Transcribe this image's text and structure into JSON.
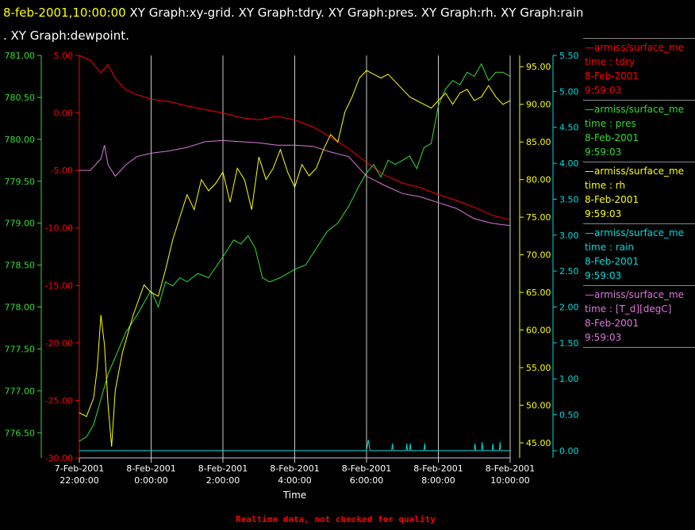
{
  "title": {
    "timestamp": "8-feb-2001,10:00:00",
    "graphs_line1": "  XY Graph:xy-grid.  XY Graph:tdry.  XY Graph:pres.  XY Graph:rh.  XY Graph:rain",
    "graphs_line2": ".  XY Graph:dewpoint."
  },
  "colors": {
    "tdry": "#ff0000",
    "pres": "#33dd33",
    "rh": "#ffff00",
    "rain": "#00dddd",
    "dewpoint": "#dd77dd",
    "grid": "#cccccc",
    "background": "#000000"
  },
  "legend": [
    {
      "source": "—armiss/surface_me",
      "field": "time : tdry",
      "date": "8-Feb-2001",
      "time": "9:59:03",
      "color": "#ff0000"
    },
    {
      "source": "—armiss/surface_me",
      "field": "time : pres",
      "date": "8-Feb-2001",
      "time": "9:59:03",
      "color": "#33dd33"
    },
    {
      "source": "—armiss/surface_me",
      "field": "time : rh",
      "date": "8-Feb-2001",
      "time": "9:59:03",
      "color": "#ffff00"
    },
    {
      "source": "—armiss/surface_me",
      "field": "time : rain",
      "date": "8-Feb-2001",
      "time": "9:59:03",
      "color": "#00dddd"
    },
    {
      "source": "—armiss/surface_me",
      "field": "time : [T_d][degC]",
      "date": "8-Feb-2001",
      "time": "9:59:03",
      "color": "#dd77dd"
    }
  ],
  "footer_note": "Realtime data, not checked for quality",
  "chart_data": {
    "type": "line",
    "xlabel": "Time",
    "x_ticks": [
      {
        "hour": 22,
        "date": "7-Feb-2001",
        "time": "22:00:00"
      },
      {
        "hour": 24,
        "date": "8-Feb-2001",
        "time": "0:00:00"
      },
      {
        "hour": 26,
        "date": "8-Feb-2001",
        "time": "2:00:00"
      },
      {
        "hour": 28,
        "date": "8-Feb-2001",
        "time": "4:00:00"
      },
      {
        "hour": 30,
        "date": "8-Feb-2001",
        "time": "6:00:00"
      },
      {
        "hour": 32,
        "date": "8-Feb-2001",
        "time": "8:00:00"
      },
      {
        "hour": 34,
        "date": "8-Feb-2001",
        "time": "10:00:00"
      }
    ],
    "xlim_hours": [
      22,
      34
    ],
    "axes": {
      "pres": {
        "ylim": [
          776.2,
          781.0
        ],
        "ticks": [
          "781.00",
          "780.50",
          "780.00",
          "779.50",
          "779.00",
          "778.50",
          "778.00",
          "777.50",
          "777.00",
          "776.50"
        ],
        "side": "left"
      },
      "tdry": {
        "ylim": [
          -30,
          5
        ],
        "ticks": [
          "5.00",
          "0.00",
          "-5.00",
          "-10.00",
          "-15.00",
          "-20.00",
          "-25.00",
          "-30.00"
        ],
        "side": "left"
      },
      "rh": {
        "ylim": [
          43,
          96.5
        ],
        "ticks": [
          "95.00",
          "90.00",
          "85.00",
          "80.00",
          "75.00",
          "70.00",
          "65.00",
          "60.00",
          "55.00",
          "50.00",
          "45.00"
        ],
        "side": "right"
      },
      "rain": {
        "ylim": [
          -0.1,
          5.5
        ],
        "ticks": [
          "5.50",
          "5.00",
          "4.50",
          "4.00",
          "3.50",
          "3.00",
          "2.50",
          "2.00",
          "1.50",
          "1.00",
          "0.50",
          "0.00"
        ],
        "side": "right"
      }
    },
    "series": [
      {
        "key": "tdry",
        "axis": "tdry",
        "color": "#ff0000",
        "x": [
          22.0,
          22.3,
          22.6,
          22.8,
          23.0,
          23.3,
          23.6,
          24.0,
          24.5,
          25.0,
          25.5,
          26.0,
          26.5,
          27.0,
          27.5,
          28.0,
          28.5,
          29.0,
          29.5,
          30.0,
          30.5,
          31.0,
          31.5,
          32.0,
          32.5,
          33.0,
          33.5,
          34.0
        ],
        "y": [
          5.0,
          4.6,
          3.5,
          4.2,
          3.0,
          2.0,
          1.6,
          1.2,
          1.0,
          0.6,
          0.3,
          0.0,
          -0.4,
          -0.6,
          -0.3,
          -0.6,
          -1.2,
          -2.1,
          -3.1,
          -4.3,
          -5.4,
          -6.1,
          -6.5,
          -7.1,
          -7.6,
          -8.2,
          -8.9,
          -9.3
        ]
      },
      {
        "key": "pres",
        "axis": "pres",
        "color": "#33dd33",
        "x": [
          22.0,
          22.2,
          22.4,
          22.6,
          22.8,
          23.0,
          23.3,
          23.6,
          24.0,
          24.2,
          24.4,
          24.6,
          24.8,
          25.0,
          25.3,
          25.6,
          26.0,
          26.3,
          26.5,
          26.7,
          26.9,
          27.1,
          27.3,
          27.6,
          28.0,
          28.3,
          28.6,
          28.9,
          29.2,
          29.5,
          29.8,
          30.0,
          30.2,
          30.4,
          30.6,
          30.8,
          31.0,
          31.2,
          31.4,
          31.6,
          31.8,
          32.0,
          32.2,
          32.4,
          32.6,
          32.8,
          33.0,
          33.2,
          33.4,
          33.6,
          33.8,
          34.0
        ],
        "y": [
          776.4,
          776.45,
          776.6,
          776.9,
          777.2,
          777.4,
          777.7,
          777.9,
          778.2,
          778.0,
          778.3,
          778.25,
          778.35,
          778.3,
          778.4,
          778.35,
          778.6,
          778.8,
          778.75,
          778.85,
          778.7,
          778.35,
          778.3,
          778.35,
          778.45,
          778.5,
          778.7,
          778.9,
          779.0,
          779.2,
          779.45,
          779.6,
          779.7,
          779.55,
          779.75,
          779.7,
          779.75,
          779.8,
          779.65,
          779.9,
          779.95,
          780.4,
          780.6,
          780.7,
          780.65,
          780.8,
          780.75,
          780.9,
          780.7,
          780.8,
          780.8,
          780.75
        ]
      },
      {
        "key": "rh",
        "axis": "rh",
        "color": "#ffff00",
        "x": [
          22.0,
          22.2,
          22.4,
          22.5,
          22.6,
          22.7,
          22.8,
          22.9,
          23.0,
          23.2,
          23.5,
          23.8,
          24.0,
          24.2,
          24.4,
          24.6,
          24.8,
          25.0,
          25.2,
          25.4,
          25.6,
          25.8,
          26.0,
          26.2,
          26.4,
          26.6,
          26.8,
          27.0,
          27.2,
          27.4,
          27.6,
          27.8,
          28.0,
          28.2,
          28.4,
          28.6,
          28.8,
          29.0,
          29.2,
          29.4,
          29.6,
          29.8,
          30.0,
          30.2,
          30.4,
          30.6,
          30.8,
          31.0,
          31.2,
          31.4,
          31.6,
          31.8,
          32.0,
          32.2,
          32.4,
          32.6,
          32.8,
          33.0,
          33.2,
          33.4,
          33.6,
          33.8,
          34.0
        ],
        "y": [
          49.0,
          48.5,
          51.0,
          55.0,
          62.0,
          58.0,
          50.0,
          44.5,
          52.0,
          57.0,
          62.0,
          66.0,
          65.0,
          64.5,
          68.0,
          72.0,
          75.0,
          78.0,
          76.0,
          80.0,
          78.5,
          79.5,
          81.0,
          77.0,
          81.5,
          80.0,
          76.0,
          83.0,
          80.0,
          81.5,
          84.0,
          81.0,
          79.0,
          82.0,
          80.5,
          81.5,
          84.0,
          86.0,
          85.0,
          89.0,
          91.0,
          93.5,
          94.5,
          94.0,
          93.5,
          94.0,
          93.0,
          92.0,
          91.0,
          90.5,
          90.0,
          89.5,
          90.5,
          91.5,
          90.0,
          91.5,
          92.0,
          90.5,
          91.0,
          92.5,
          91.0,
          90.0,
          90.5
        ]
      },
      {
        "key": "rain",
        "axis": "rain",
        "color": "#00dddd",
        "x": [
          22.0,
          30.0,
          30.05,
          30.1,
          30.7,
          30.72,
          30.74,
          31.1,
          31.12,
          31.14,
          31.2,
          31.22,
          31.24,
          31.6,
          31.62,
          31.64,
          33.0,
          33.02,
          33.04,
          33.2,
          33.22,
          33.24,
          33.5,
          33.52,
          33.54,
          33.7,
          33.72,
          33.74,
          34.0
        ],
        "y": [
          0.0,
          0.0,
          0.15,
          0.0,
          0.0,
          0.1,
          0.0,
          0.0,
          0.1,
          0.0,
          0.0,
          0.1,
          0.0,
          0.0,
          0.1,
          0.0,
          0.0,
          0.1,
          0.0,
          0.0,
          0.12,
          0.0,
          0.0,
          0.1,
          0.0,
          0.0,
          0.12,
          0.0,
          0.0
        ]
      },
      {
        "key": "dewpoint",
        "axis": "tdry",
        "color": "#dd77dd",
        "x": [
          22.0,
          22.3,
          22.6,
          22.7,
          22.8,
          23.0,
          23.3,
          23.6,
          24.0,
          24.5,
          25.0,
          25.5,
          26.0,
          26.5,
          27.0,
          27.5,
          28.0,
          28.5,
          29.0,
          29.5,
          30.0,
          30.5,
          31.0,
          31.5,
          32.0,
          32.5,
          33.0,
          33.5,
          34.0
        ],
        "y": [
          -5.0,
          -5.0,
          -4.0,
          -2.8,
          -4.5,
          -5.5,
          -4.5,
          -3.8,
          -3.5,
          -3.3,
          -3.0,
          -2.5,
          -2.4,
          -2.5,
          -2.6,
          -2.8,
          -2.8,
          -2.9,
          -3.4,
          -3.8,
          -5.5,
          -6.3,
          -7.0,
          -7.3,
          -7.8,
          -8.3,
          -9.2,
          -9.6,
          -9.8
        ]
      }
    ]
  }
}
